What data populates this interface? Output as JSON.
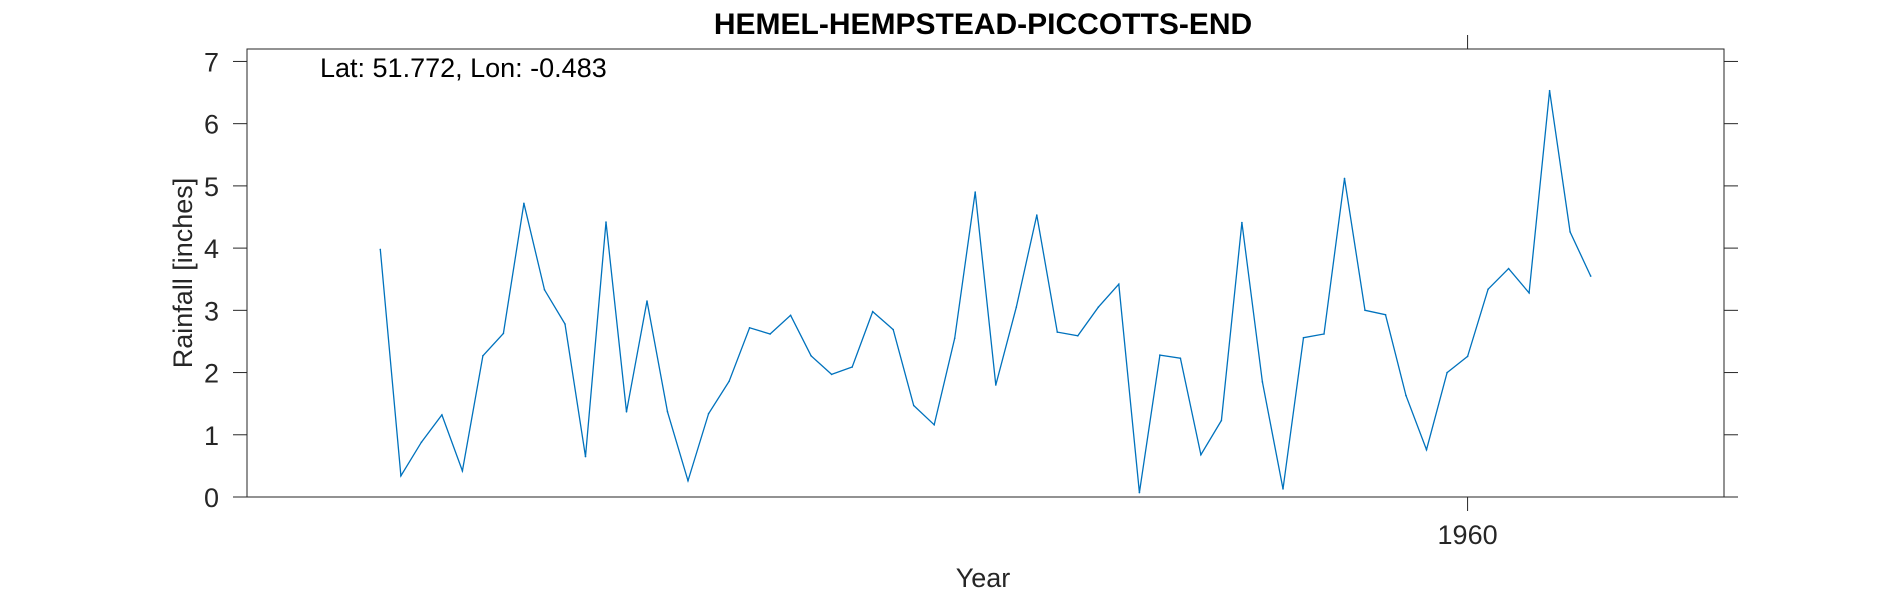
{
  "chart_data": {
    "type": "line",
    "title": "HEMEL-HEMPSTEAD-PICCOTTS-END",
    "annotation": "Lat: 51.772, Lon: -0.483",
    "xlabel": "Year",
    "ylabel": "Rainfall [inches]",
    "xlim": [
      1900.5,
      1972.5
    ],
    "ylim": [
      0,
      7.2
    ],
    "xticks": [
      1960
    ],
    "yticks": [
      0,
      1,
      2,
      3,
      4,
      5,
      6,
      7
    ],
    "grid": false,
    "legend": "none",
    "line_color": "#0072BD",
    "series": [
      {
        "x": [
          1907,
          1908,
          1909,
          1910,
          1911,
          1912,
          1913,
          1914,
          1915,
          1916,
          1917,
          1918,
          1919,
          1920,
          1921,
          1922,
          1923,
          1924,
          1925,
          1926,
          1927,
          1928,
          1929,
          1930,
          1931,
          1932,
          1933,
          1934,
          1935,
          1936,
          1937,
          1938,
          1939,
          1940,
          1941,
          1942,
          1943,
          1944,
          1945,
          1946,
          1947,
          1948,
          1949,
          1950,
          1951,
          1952,
          1953,
          1954,
          1955,
          1956,
          1957,
          1958,
          1959,
          1960,
          1961,
          1962,
          1963,
          1964,
          1965,
          1966
        ],
        "values": [
          3.98,
          0.34,
          0.88,
          1.32,
          0.42,
          2.27,
          2.63,
          4.72,
          3.33,
          2.78,
          0.65,
          4.42,
          1.37,
          3.15,
          1.37,
          0.26,
          1.34,
          1.86,
          2.72,
          2.62,
          2.92,
          2.27,
          1.97,
          2.09,
          2.98,
          2.69,
          1.47,
          1.16,
          2.55,
          4.9,
          1.8,
          3.05,
          4.53,
          2.65,
          2.59,
          3.05,
          3.42,
          0.07,
          2.28,
          2.23,
          0.68,
          1.23,
          4.41,
          1.85,
          0.13,
          2.56,
          2.62,
          5.12,
          3.0,
          2.93,
          1.63,
          0.76,
          2.0,
          2.26,
          3.34,
          3.67,
          3.28,
          6.53,
          4.26,
          3.55
        ]
      }
    ]
  }
}
